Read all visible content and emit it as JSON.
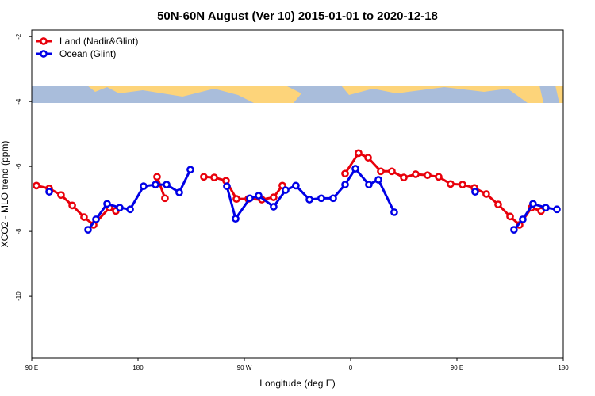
{
  "chart_data": {
    "type": "line",
    "title": "50N-60N August (Ver 10)   2015-01-01 to 2020-12-18",
    "x_label": "Longitude (deg E)",
    "y_label": "XCO2 - MLO trend (ppm)",
    "xlim": [
      90,
      540
    ],
    "ylim": [
      -11.9,
      -1.8
    ],
    "xticks": [
      {
        "value": 90,
        "label": "90 E"
      },
      180,
      {
        "value": 270,
        "label": "90 W"
      },
      {
        "value": 360,
        "label": "0"
      },
      {
        "value": 450,
        "label": "90 E"
      },
      {
        "value": 540,
        "label": "180"
      }
    ],
    "yticks": [
      -2,
      -4,
      -6,
      -8,
      -10
    ],
    "legend": "top-left",
    "series": [
      {
        "name": "Land (Nadir&Glint)",
        "color": "#e8000b",
        "x": [
          94.0,
          104.8,
          114.8,
          124.3,
          134.3,
          142.4,
          155.8,
          161.2,
          null,
          196.1,
          202.8,
          null,
          235.7,
          244.5,
          254.5,
          263.3,
          273.3,
          284.8,
          294.8,
          302.2,
          null,
          355.3,
          366.7,
          374.8,
          385.5,
          394.9,
          405.0,
          415.1,
          425.1,
          434.5,
          444.6,
          454.7,
          464.8,
          474.8,
          484.9,
          495.0,
          503.0,
          513.1,
          521.2
        ],
        "values": [
          -6.59,
          -6.68,
          -6.88,
          -7.2,
          -7.56,
          -7.8,
          -7.27,
          -7.37,
          null,
          -6.32,
          -6.98,
          null,
          -6.32,
          -6.34,
          -6.44,
          -7.0,
          -7.0,
          -7.02,
          -6.95,
          -6.59,
          null,
          -6.22,
          -5.59,
          -5.73,
          -6.15,
          -6.15,
          -6.34,
          -6.24,
          -6.27,
          -6.32,
          -6.54,
          -6.56,
          -6.66,
          -6.85,
          -7.17,
          -7.54,
          -7.8,
          -7.27,
          -7.37
        ]
      },
      {
        "name": "Ocean (Glint)",
        "color": "#0000e6",
        "x": [
          104.8,
          null,
          137.7,
          144.4,
          153.8,
          164.5,
          173.3,
          184.7,
          194.8,
          204.2,
          214.9,
          224.3,
          null,
          255.2,
          262.6,
          274.7,
          282.1,
          294.8,
          304.9,
          313.6,
          325.1,
          335.1,
          345.2,
          355.3,
          364.0,
          375.4,
          383.5,
          396.9,
          null,
          465.4,
          null,
          498.3,
          505.7,
          514.4,
          525.2,
          534.6
        ],
        "values": [
          -6.78,
          null,
          -7.95,
          -7.63,
          -7.15,
          -7.27,
          -7.32,
          -6.61,
          -6.56,
          -6.56,
          -6.8,
          -6.1,
          null,
          -6.61,
          -7.61,
          -6.98,
          -6.9,
          -7.24,
          -6.73,
          -6.59,
          -7.02,
          -6.98,
          -6.98,
          -6.56,
          -6.07,
          -6.56,
          -6.41,
          -7.41,
          null,
          -6.78,
          null,
          -7.95,
          -7.63,
          -7.15,
          -7.27,
          -7.32
        ]
      }
    ]
  }
}
